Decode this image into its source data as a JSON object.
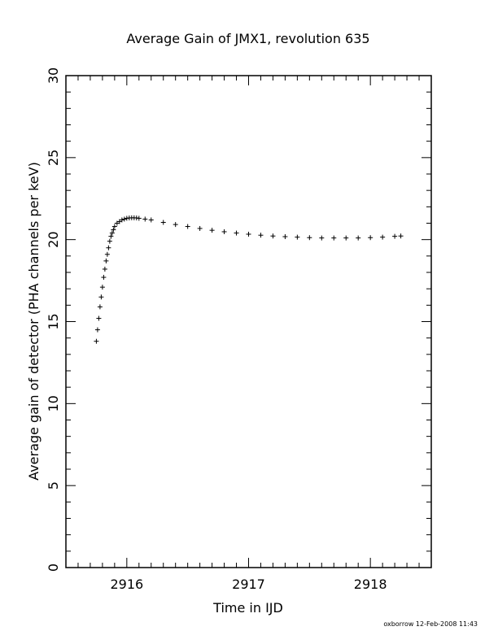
{
  "chart_data": {
    "type": "scatter",
    "marker": "plus",
    "title": "Average Gain of JMX1, revolution 635",
    "xlabel": "Time in IJD",
    "ylabel": "Average gain of detector (PHA channels per keV)",
    "xlim": [
      2915.5,
      2918.5
    ],
    "ylim": [
      0,
      30
    ],
    "x_ticks": [
      2916,
      2917,
      2918
    ],
    "x_tick_labels": [
      "2916",
      "2917",
      "2918"
    ],
    "y_ticks": [
      0,
      5,
      10,
      15,
      20,
      25,
      30
    ],
    "y_tick_labels": [
      "0",
      "5",
      "10",
      "15",
      "20",
      "25",
      "30"
    ],
    "grid": false,
    "legend": "none",
    "color": "#000000",
    "series": [
      {
        "x": [
          2915.75,
          2915.76,
          2915.77,
          2915.78,
          2915.79,
          2915.8,
          2915.81,
          2915.82,
          2915.83,
          2915.84,
          2915.85,
          2915.86,
          2915.87,
          2915.88,
          2915.89,
          2915.9,
          2915.92,
          2915.94,
          2915.96,
          2915.98,
          2916.0,
          2916.02,
          2916.04,
          2916.06,
          2916.08,
          2916.1,
          2916.15,
          2916.2,
          2916.3,
          2916.4,
          2916.5,
          2916.6,
          2916.7,
          2916.8,
          2916.9,
          2917.0,
          2917.1,
          2917.2,
          2917.3,
          2917.4,
          2917.5,
          2917.6,
          2917.7,
          2917.8,
          2917.9,
          2918.0,
          2918.1,
          2918.2,
          2918.25
        ],
        "y": [
          13.8,
          14.5,
          15.2,
          15.9,
          16.5,
          17.1,
          17.7,
          18.2,
          18.7,
          19.1,
          19.5,
          19.9,
          20.2,
          20.4,
          20.6,
          20.8,
          21.0,
          21.1,
          21.2,
          21.25,
          21.3,
          21.32,
          21.33,
          21.33,
          21.32,
          21.3,
          21.25,
          21.2,
          21.05,
          20.92,
          20.8,
          20.68,
          20.57,
          20.48,
          20.4,
          20.33,
          20.27,
          20.22,
          20.18,
          20.15,
          20.12,
          20.1,
          20.1,
          20.1,
          20.1,
          20.12,
          20.15,
          20.2,
          20.22
        ]
      }
    ]
  },
  "footer": {
    "stamp": "oxborrow 12-Feb-2008 11:43"
  }
}
